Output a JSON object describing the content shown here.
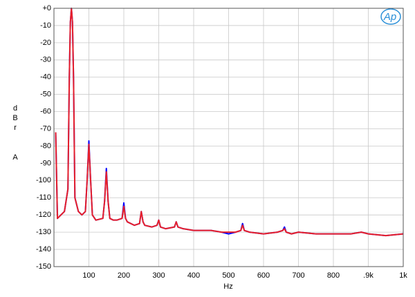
{
  "chart_data": {
    "type": "line",
    "ylabel": "dBr",
    "ylabel2": "A",
    "xlabel": "Hz",
    "logo": "Ap",
    "x": [
      5,
      10,
      20,
      30,
      40,
      44,
      47,
      50,
      53,
      56,
      60,
      70,
      80,
      90,
      95,
      100,
      105,
      110,
      120,
      140,
      145,
      150,
      155,
      160,
      170,
      180,
      195,
      200,
      205,
      210,
      230,
      245,
      250,
      255,
      260,
      280,
      295,
      300,
      305,
      320,
      345,
      350,
      355,
      370,
      400,
      420,
      450,
      480,
      500,
      520,
      535,
      540,
      545,
      560,
      600,
      640,
      655,
      660,
      665,
      680,
      700,
      750,
      800,
      850,
      880,
      900,
      950,
      1000
    ],
    "series": [
      {
        "color": "#0000ff",
        "values": [
          -72,
          -122,
          -120,
          -118,
          -105,
          -40,
          -8,
          0,
          -8,
          -40,
          -110,
          -118,
          -120,
          -118,
          -100,
          -77,
          -100,
          -120,
          -123,
          -122,
          -112,
          -93,
          -112,
          -122,
          -123,
          -123,
          -122,
          -113,
          -122,
          -124,
          -126,
          -125,
          -118,
          -124,
          -126,
          -127,
          -126,
          -123,
          -127,
          -128,
          -127,
          -124,
          -127,
          -128,
          -129,
          -129,
          -129,
          -130,
          -131,
          -130,
          -129,
          -125,
          -129,
          -130,
          -131,
          -130,
          -129,
          -127,
          -130,
          -131,
          -130,
          -131,
          -131,
          -131,
          -130,
          -131,
          -132,
          -131
        ]
      },
      {
        "color": "#e8202a",
        "values": [
          -72,
          -122,
          -120,
          -118,
          -105,
          -40,
          -8,
          0,
          -8,
          -40,
          -110,
          -118,
          -120,
          -118,
          -100,
          -79,
          -100,
          -120,
          -123,
          -122,
          -112,
          -95,
          -112,
          -122,
          -123,
          -123,
          -122,
          -115,
          -122,
          -124,
          -126,
          -125,
          -118,
          -124,
          -126,
          -127,
          -126,
          -123,
          -127,
          -128,
          -127,
          -124,
          -127,
          -128,
          -129,
          -129,
          -129,
          -130,
          -130,
          -130,
          -129,
          -126,
          -129,
          -130,
          -131,
          -130,
          -129,
          -128,
          -130,
          -131,
          -130,
          -131,
          -131,
          -131,
          -130,
          -131,
          -132,
          -131
        ]
      }
    ],
    "xlim": [
      0,
      1000
    ],
    "xticks": [
      100,
      200,
      300,
      400,
      500,
      600,
      700,
      800,
      {
        "value": 900,
        "label": ".9k"
      },
      {
        "value": 1000,
        "label": "1k"
      }
    ],
    "ylim": [
      -150,
      0
    ],
    "yticks": [
      {
        "value": 0,
        "label": "+0"
      },
      -10,
      -20,
      -30,
      -40,
      -50,
      -60,
      -70,
      -80,
      -90,
      -100,
      -110,
      -120,
      -130,
      -140,
      -150
    ],
    "grid": true
  }
}
